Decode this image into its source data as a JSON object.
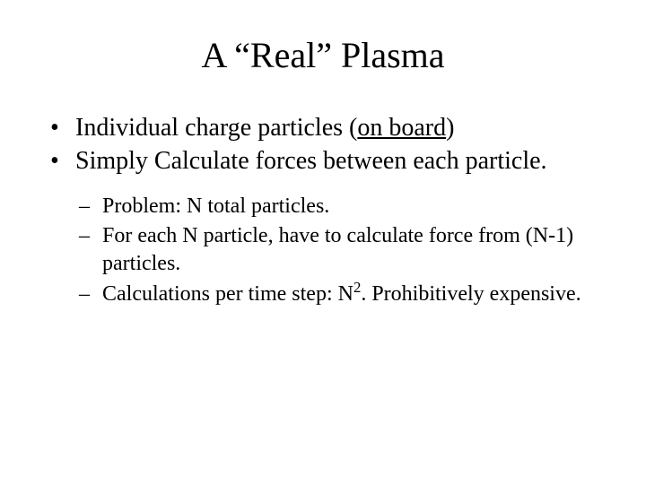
{
  "slide": {
    "title": "A “Real” Plasma",
    "bullets_level1": [
      {
        "prefix": "Individual charge particles (",
        "underlined": "on board",
        "suffix": ")"
      },
      {
        "text": "Simply Calculate forces between each particle."
      }
    ],
    "bullets_level2": [
      {
        "text": "Problem: N total particles."
      },
      {
        "text": "For each N particle, have to calculate force from (N-1) particles."
      },
      {
        "pre": "Calculations per time step: N",
        "sup": "2",
        "post": ". Prohibitively expensive."
      }
    ],
    "style": {
      "background_color": "#ffffff",
      "text_color": "#000000",
      "font_family": "Times New Roman",
      "title_fontsize": 40,
      "level1_fontsize": 28,
      "level2_fontsize": 24
    }
  }
}
